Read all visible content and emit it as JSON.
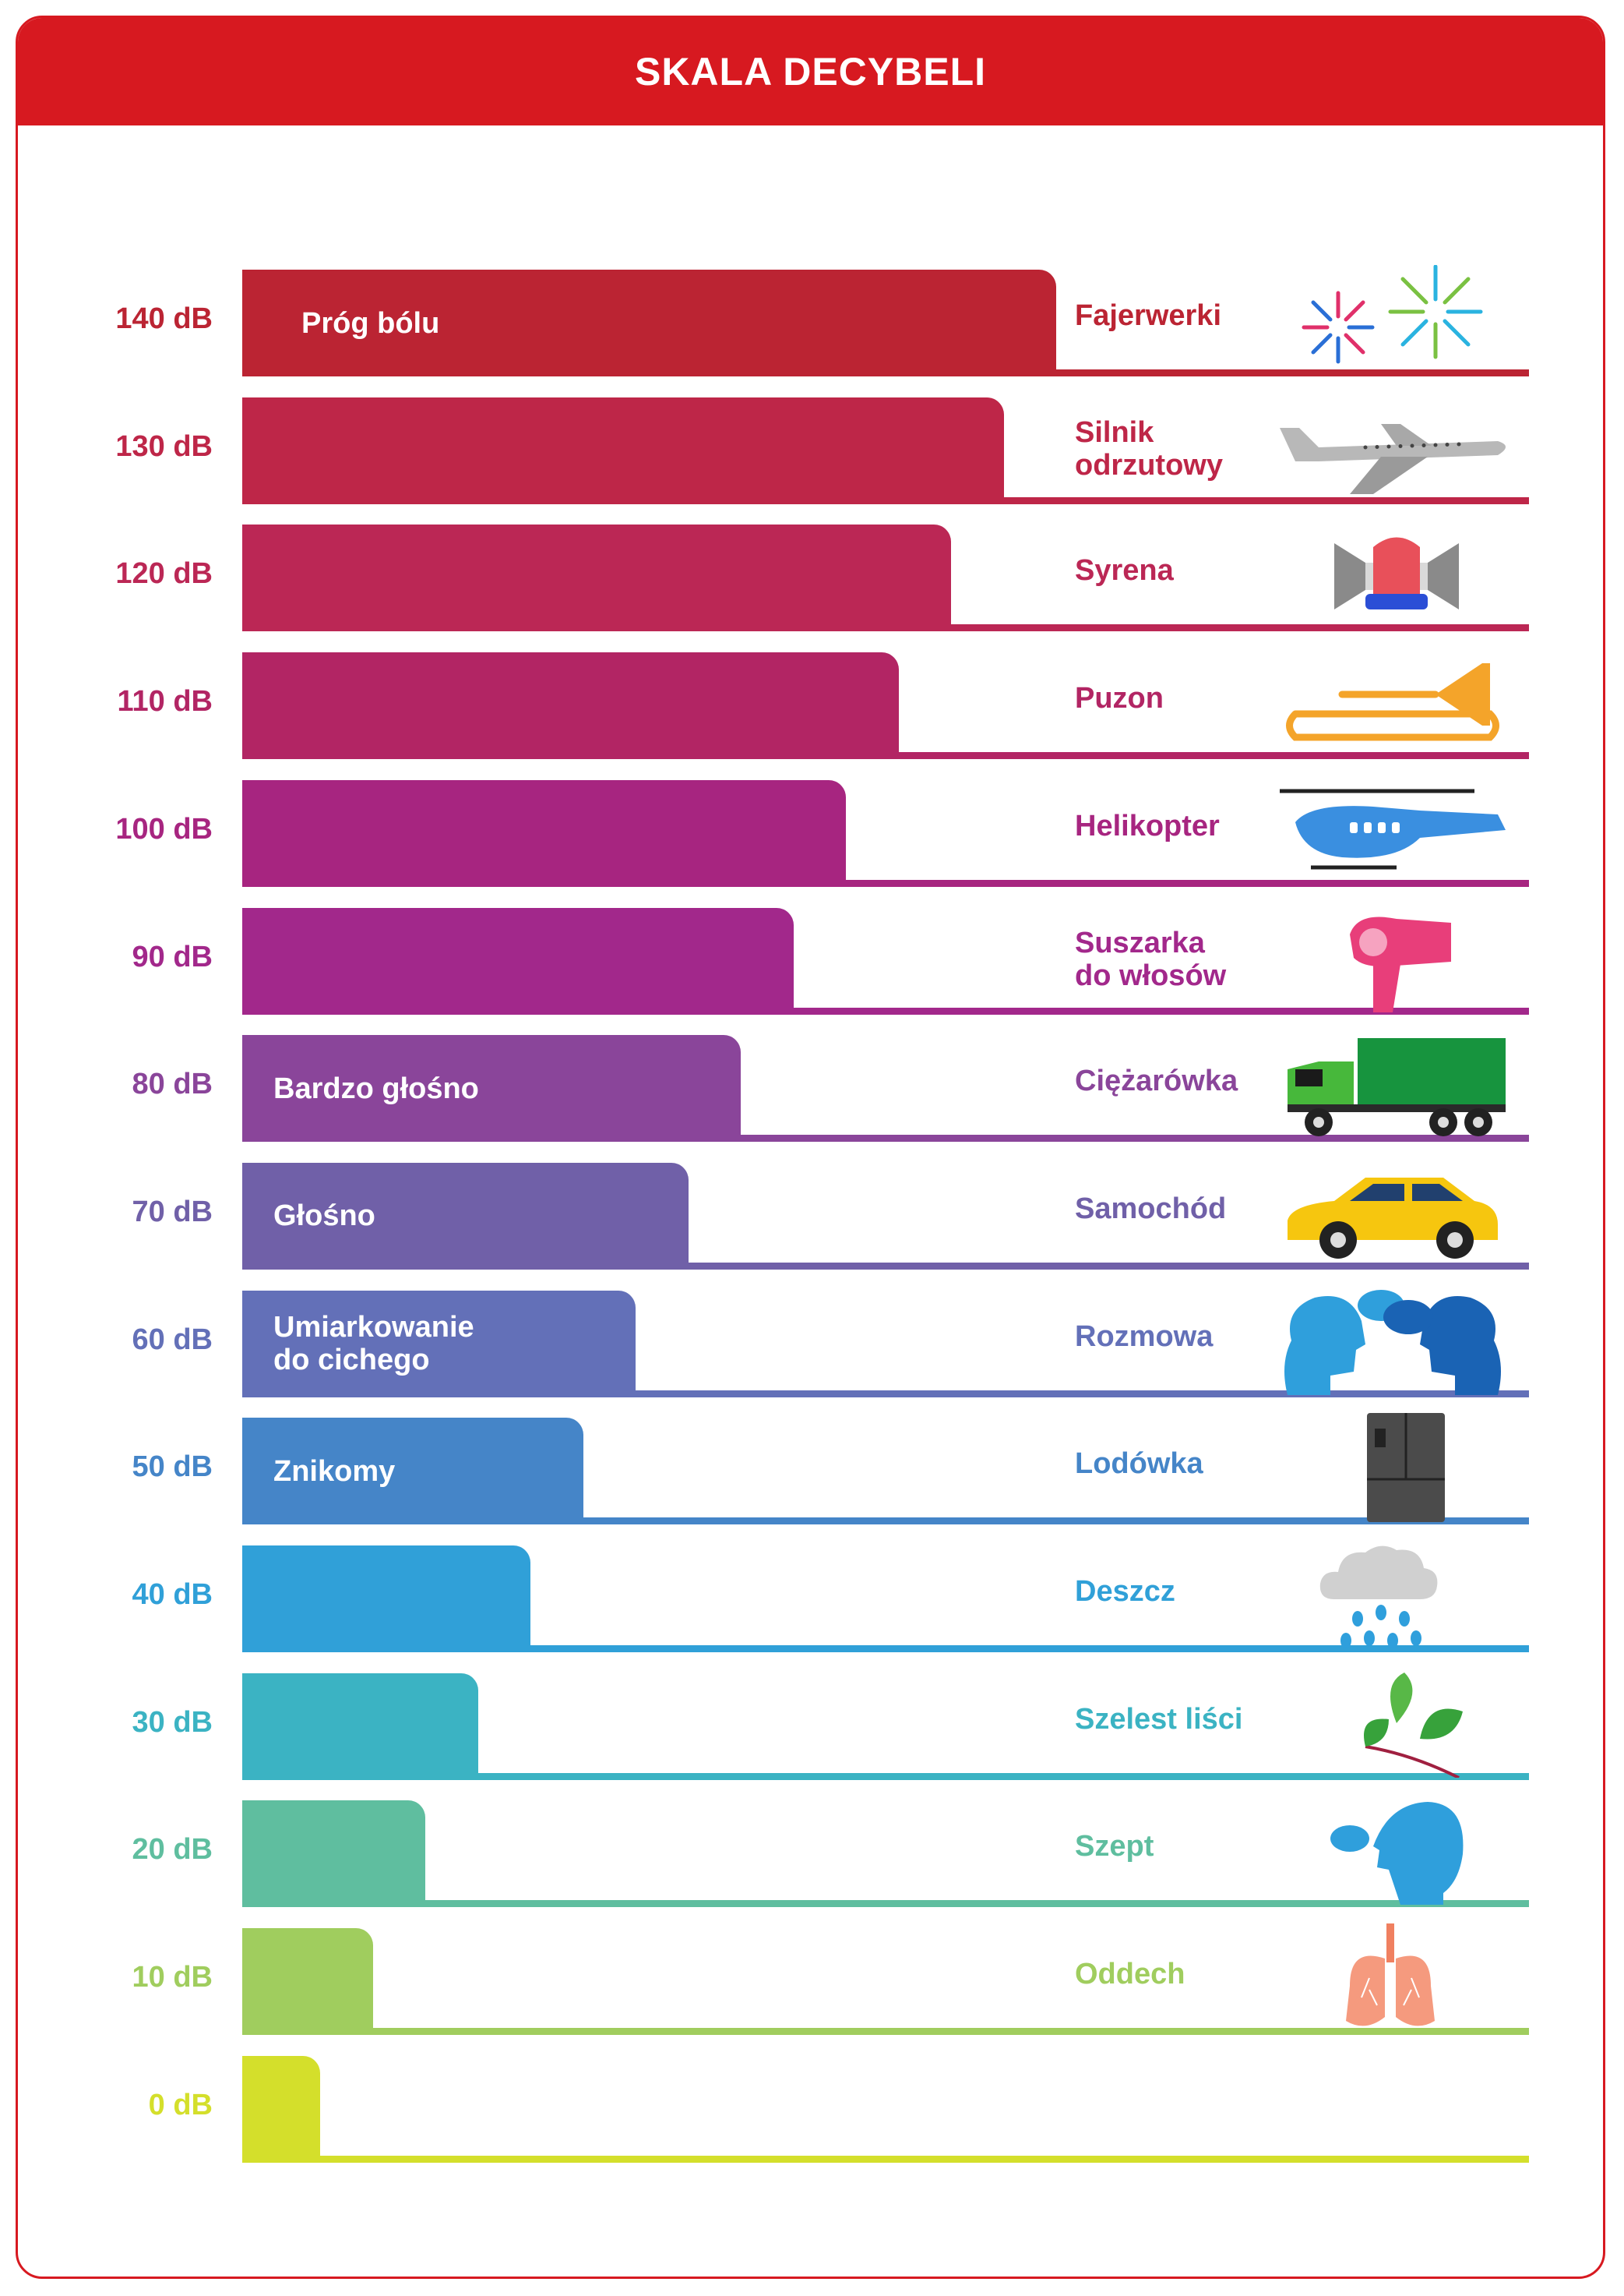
{
  "header": {
    "title": "SKALA DECYBELI"
  },
  "colors": {
    "header": "#d71920",
    "frame": "#d71920"
  },
  "icons": [
    "fireworks-icon",
    "airplane-icon",
    "siren-icon",
    "trombone-icon",
    "helicopter-icon",
    "hair-dryer-icon",
    "truck-icon",
    "car-icon",
    "conversation-icon",
    "fridge-icon",
    "rain-icon",
    "leaves-icon",
    "whisper-icon",
    "lungs-icon"
  ],
  "chart_data": {
    "type": "bar",
    "orientation": "horizontal",
    "title": "SKALA DECYBELI",
    "unit": "dB",
    "xlim": [
      0,
      140
    ],
    "rows": [
      {
        "label": "140 dB",
        "value": 140,
        "level": "Próg bólu",
        "source": [
          "Fajerwerki"
        ],
        "color": "#bb2433",
        "icon": "fireworks-icon"
      },
      {
        "label": "130 dB",
        "value": 130,
        "level": "",
        "source": [
          "Silnik",
          "odrzutowy"
        ],
        "color": "#be2648",
        "icon": "airplane-icon"
      },
      {
        "label": "120 dB",
        "value": 120,
        "level": "",
        "source": [
          "Syrena"
        ],
        "color": "#bb2755",
        "icon": "siren-icon"
      },
      {
        "label": "110 dB",
        "value": 110,
        "level": "",
        "source": [
          "Puzon"
        ],
        "color": "#b22564",
        "icon": "trombone-icon"
      },
      {
        "label": "100 dB",
        "value": 100,
        "level": "",
        "source": [
          "Helikopter"
        ],
        "color": "#a72580",
        "icon": "helicopter-icon"
      },
      {
        "label": "90 dB",
        "value": 90,
        "level": "",
        "source": [
          "Suszarka",
          "do włosów"
        ],
        "color": "#a2288b",
        "icon": "hair-dryer-icon"
      },
      {
        "label": "80 dB",
        "value": 80,
        "level": "Bardzo głośno",
        "source": [
          "Ciężarówka"
        ],
        "color": "#8a459a",
        "icon": "truck-icon"
      },
      {
        "label": "70 dB",
        "value": 70,
        "level": "Głośno",
        "source": [
          "Samochód"
        ],
        "color": "#7060a8",
        "icon": "car-icon"
      },
      {
        "label": "60 dB",
        "value": 60,
        "level": "Umiarkowanie\ndo cichego",
        "source": [
          "Rozmowa"
        ],
        "color": "#6370b8",
        "icon": "conversation-icon"
      },
      {
        "label": "50 dB",
        "value": 50,
        "level": "Znikomy",
        "source": [
          "Lodówka"
        ],
        "color": "#4585c8",
        "icon": "fridge-icon"
      },
      {
        "label": "40 dB",
        "value": 40,
        "level": "",
        "source": [
          "Deszcz"
        ],
        "color": "#30a0d8",
        "icon": "rain-icon"
      },
      {
        "label": "30 dB",
        "value": 30,
        "level": "",
        "source": [
          "Szelest liści"
        ],
        "color": "#3bb3c3",
        "icon": "leaves-icon"
      },
      {
        "label": "20 dB",
        "value": 20,
        "level": "",
        "source": [
          "Szept"
        ],
        "color": "#5fbe9f",
        "icon": "whisper-icon"
      },
      {
        "label": "10 dB",
        "value": 10,
        "level": "",
        "source": [
          "Oddech"
        ],
        "color": "#a0cd5e",
        "icon": "lungs-icon"
      },
      {
        "label": "0 dB",
        "value": 0,
        "level": "",
        "source": [],
        "color": "#d4df2b",
        "icon": ""
      }
    ]
  }
}
